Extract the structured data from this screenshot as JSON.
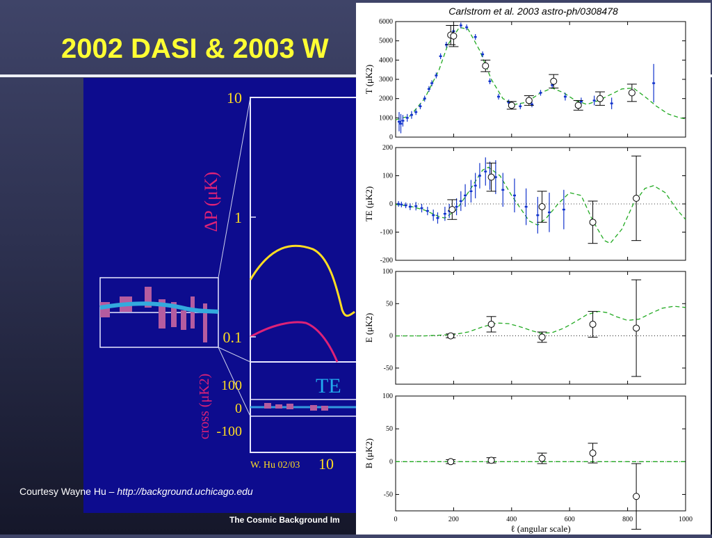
{
  "slide": {
    "title": "2002 DASI & 2003 W",
    "credit_prefix": "Courtesy Wayne Hu – ",
    "credit_link": "http://background.uchicago.edu",
    "footer": "The Cosmic Background Im"
  },
  "colors": {
    "title": "#ffff33",
    "hu_background": "#0d0c8e",
    "ee_curve": "#ffdd22",
    "bb_curve": "#dd2277",
    "te_label": "#22aaee",
    "model": "#22aa22",
    "cbi_points": "#1133cc",
    "dasi_points": "#000000"
  },
  "hu_plot": {
    "y_label": "ΔP (μK)",
    "y_ticks": [
      "10",
      "1",
      "0.1"
    ],
    "cross_label": "cross (μK2)",
    "cross_ticks": [
      "100",
      "0",
      "-100"
    ],
    "te_label": "TE",
    "x_tick": "10",
    "signature": "W. Hu 02/03"
  },
  "chart_data": [
    {
      "type": "scatter",
      "title": "Carlstrom et al. 2003 astro-ph/0308478",
      "ylabel": "T  (μK2)",
      "xlim": [
        0,
        1000
      ],
      "ylim": [
        0,
        6000
      ],
      "y_ticks": [
        0,
        1000,
        2000,
        3000,
        4000,
        5000,
        6000
      ],
      "series": [
        {
          "values": [
            [
              190,
              5300,
              500
            ],
            [
              200,
              5250,
              550
            ],
            [
              310,
              3700,
              300
            ],
            [
              400,
              1650,
              200
            ],
            [
              460,
              1900,
              250
            ],
            [
              545,
              2900,
              350
            ],
            [
              630,
              1650,
              250
            ],
            [
              705,
              2000,
              350
            ],
            [
              815,
              2300,
              450
            ]
          ]
        },
        {
          "values": [
            [
              12,
              800,
              500
            ],
            [
              18,
              700,
              500
            ],
            [
              25,
              850,
              300
            ],
            [
              40,
              1000,
              200
            ],
            [
              55,
              1150,
              200
            ],
            [
              70,
              1300,
              150
            ],
            [
              85,
              1600,
              150
            ],
            [
              100,
              2000,
              150
            ],
            [
              115,
              2500,
              150
            ],
            [
              125,
              2800,
              150
            ],
            [
              140,
              3200,
              150
            ],
            [
              155,
              4200,
              150
            ],
            [
              175,
              4800,
              150
            ],
            [
              200,
              5500,
              150
            ],
            [
              225,
              5800,
              150
            ],
            [
              245,
              5700,
              150
            ],
            [
              275,
              5200,
              150
            ],
            [
              300,
              4300,
              150
            ],
            [
              325,
              2900,
              150
            ],
            [
              355,
              2100,
              150
            ],
            [
              390,
              1800,
              150
            ],
            [
              430,
              1600,
              150
            ],
            [
              470,
              1700,
              150
            ],
            [
              500,
              2300,
              150
            ],
            [
              540,
              2700,
              150
            ],
            [
              585,
              2100,
              200
            ],
            [
              640,
              1850,
              200
            ],
            [
              685,
              1900,
              250
            ],
            [
              745,
              1750,
              300
            ],
            [
              890,
              2800,
              1000
            ]
          ]
        },
        {
          "values": [
            [
              0,
              900
            ],
            [
              50,
              1100
            ],
            [
              100,
              2000
            ],
            [
              150,
              3500
            ],
            [
              180,
              4800
            ],
            [
              220,
              5700
            ],
            [
              250,
              5600
            ],
            [
              290,
              4500
            ],
            [
              330,
              3000
            ],
            [
              370,
              2000
            ],
            [
              410,
              1700
            ],
            [
              450,
              1800
            ],
            [
              500,
              2300
            ],
            [
              540,
              2550
            ],
            [
              580,
              2300
            ],
            [
              620,
              1900
            ],
            [
              660,
              1700
            ],
            [
              700,
              1900
            ],
            [
              740,
              2200
            ],
            [
              780,
              2500
            ],
            [
              820,
              2550
            ],
            [
              860,
              2100
            ],
            [
              900,
              1600
            ],
            [
              940,
              1200
            ],
            [
              980,
              1000
            ],
            [
              1000,
              950
            ]
          ]
        }
      ]
    },
    {
      "type": "scatter",
      "ylabel": "TE  (μK2)",
      "xlim": [
        0,
        1000
      ],
      "ylim": [
        -200,
        200
      ],
      "y_ticks": [
        -200,
        -100,
        0,
        100,
        200
      ],
      "series": [
        {
          "values": [
            [
              195,
              -20,
              35
            ],
            [
              330,
              95,
              50
            ],
            [
              505,
              -10,
              55
            ],
            [
              680,
              -65,
              75
            ],
            [
              830,
              20,
              150
            ]
          ]
        },
        {
          "values": [
            [
              10,
              0,
              10
            ],
            [
              20,
              -2,
              10
            ],
            [
              35,
              -5,
              10
            ],
            [
              50,
              -10,
              12
            ],
            [
              70,
              -8,
              15
            ],
            [
              90,
              -15,
              15
            ],
            [
              110,
              -25,
              15
            ],
            [
              130,
              -40,
              20
            ],
            [
              145,
              -50,
              20
            ],
            [
              170,
              -35,
              25
            ],
            [
              185,
              -25,
              25
            ],
            [
              210,
              -10,
              30
            ],
            [
              225,
              10,
              35
            ],
            [
              240,
              30,
              40
            ],
            [
              260,
              45,
              40
            ],
            [
              275,
              65,
              45
            ],
            [
              290,
              100,
              45
            ],
            [
              310,
              115,
              50
            ],
            [
              325,
              100,
              50
            ],
            [
              345,
              95,
              60
            ],
            [
              370,
              50,
              60
            ],
            [
              410,
              30,
              60
            ],
            [
              450,
              -10,
              65
            ],
            [
              490,
              -40,
              65
            ],
            [
              530,
              -30,
              70
            ],
            [
              580,
              -20,
              70
            ]
          ]
        },
        {
          "values": [
            [
              0,
              -2
            ],
            [
              50,
              -8
            ],
            [
              100,
              -22
            ],
            [
              150,
              -45
            ],
            [
              170,
              -50
            ],
            [
              210,
              -20
            ],
            [
              250,
              40
            ],
            [
              300,
              120
            ],
            [
              320,
              130
            ],
            [
              360,
              100
            ],
            [
              400,
              30
            ],
            [
              440,
              -30
            ],
            [
              460,
              -60
            ],
            [
              490,
              -75
            ],
            [
              520,
              -50
            ],
            [
              560,
              0
            ],
            [
              600,
              40
            ],
            [
              640,
              30
            ],
            [
              680,
              -60
            ],
            [
              720,
              -130
            ],
            [
              740,
              -140
            ],
            [
              780,
              -90
            ],
            [
              820,
              0
            ],
            [
              860,
              55
            ],
            [
              890,
              65
            ],
            [
              930,
              40
            ],
            [
              970,
              -20
            ],
            [
              1000,
              -55
            ]
          ]
        }
      ]
    },
    {
      "type": "scatter",
      "ylabel": "E  (μK2)",
      "xlim": [
        0,
        1000
      ],
      "ylim": [
        -75,
        100
      ],
      "y_ticks": [
        -50,
        0,
        50,
        100
      ],
      "series": [
        {
          "values": [
            [
              190,
              0,
              3
            ],
            [
              330,
              18,
              12
            ],
            [
              505,
              -2,
              8
            ],
            [
              680,
              18,
              20
            ],
            [
              830,
              12,
              75
            ]
          ]
        },
        {
          "values": [
            [
              0,
              0
            ],
            [
              100,
              0
            ],
            [
              150,
              1
            ],
            [
              200,
              2
            ],
            [
              250,
              6
            ],
            [
              300,
              14
            ],
            [
              350,
              20
            ],
            [
              390,
              19
            ],
            [
              430,
              14
            ],
            [
              470,
              8
            ],
            [
              500,
              4
            ],
            [
              540,
              5
            ],
            [
              580,
              12
            ],
            [
              620,
              22
            ],
            [
              660,
              33
            ],
            [
              700,
              38
            ],
            [
              730,
              36
            ],
            [
              760,
              30
            ],
            [
              800,
              24
            ],
            [
              840,
              26
            ],
            [
              880,
              35
            ],
            [
              920,
              43
            ],
            [
              960,
              46
            ],
            [
              1000,
              44
            ]
          ]
        }
      ]
    },
    {
      "type": "scatter",
      "ylabel": "B  (μK2)",
      "xlabel": "ℓ (angular scale)",
      "xlim": [
        0,
        1000
      ],
      "ylim": [
        -75,
        100
      ],
      "x_ticks": [
        0,
        200,
        400,
        600,
        800,
        1000
      ],
      "y_ticks": [
        -50,
        0,
        50,
        100
      ],
      "series": [
        {
          "values": [
            [
              190,
              0,
              3
            ],
            [
              330,
              2,
              4
            ],
            [
              505,
              5,
              8
            ],
            [
              680,
              13,
              15
            ],
            [
              830,
              -53,
              50
            ]
          ]
        },
        {
          "values": [
            [
              0,
              0
            ],
            [
              1000,
              0
            ]
          ]
        }
      ]
    }
  ]
}
